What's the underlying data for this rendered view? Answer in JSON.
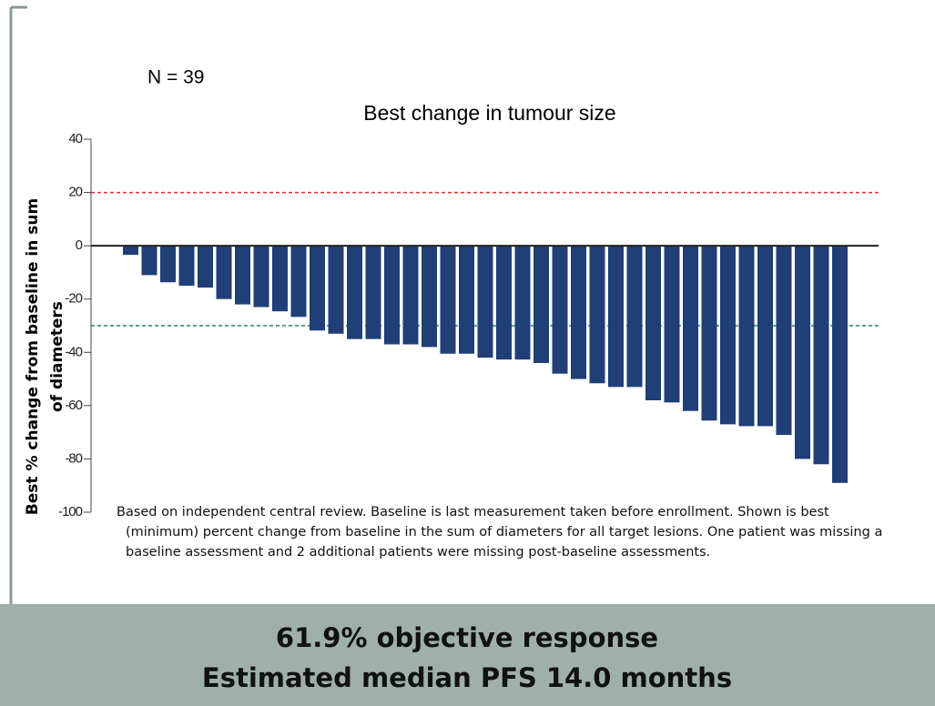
{
  "chart_data": {
    "type": "bar",
    "title": "Best change in tumour size",
    "annotation": "N = 39",
    "y_label": [
      "Best % change from baseline in sum",
      "of diameters"
    ],
    "footnote": [
      "Based on independent central review. Baseline is last measurement taken before enrollment. Shown is best",
      "(minimum) percent change from baseline in the sum of diameters for all target lesions. One patient was missing a",
      "baseline assessment and 2 additional patients were missing post-baseline assessments."
    ],
    "values": [
      -3.4,
      -11,
      -13.7,
      -15,
      -15.7,
      -20,
      -22,
      -23,
      -24.6,
      -26.7,
      -31.8,
      -33,
      -35,
      -35,
      -37,
      -37,
      -38,
      -40.5,
      -40.5,
      -42,
      -42.7,
      -42.7,
      -44,
      -48,
      -50,
      -51.6,
      -53,
      -53,
      -58,
      -58.8,
      -62,
      -65.6,
      -67,
      -67.7,
      -67.7,
      -71,
      -80,
      -82,
      -89
    ],
    "color": "#1f3f76",
    "ylim": [
      -100,
      40
    ],
    "yticks": [
      40,
      20,
      0,
      -20,
      -40,
      -60,
      -80,
      -100
    ],
    "reference_lines": [
      {
        "value": 20,
        "color": "#e03030"
      },
      {
        "value": -30,
        "color": "#1a8a5a"
      }
    ]
  },
  "banner": {
    "lines": [
      "61.9% objective response",
      "Estimated median PFS 14.0 months"
    ]
  }
}
